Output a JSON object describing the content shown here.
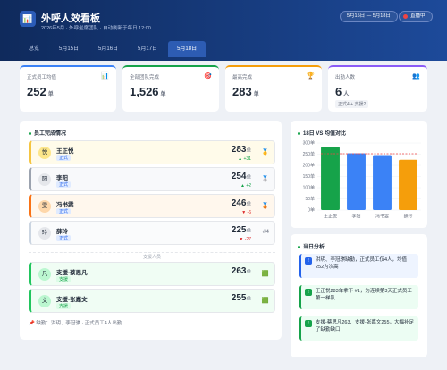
{
  "header": {
    "title": "外呼人效看板",
    "subtitle": "2026年5月 · 外呼坐席团队 · 自动刷新于每日 12:00",
    "date_range": "5月15日 — 5月18日",
    "live": "直播中"
  },
  "tabs": [
    "总览",
    "5月15日",
    "5月16日",
    "5月17日",
    "5月18日"
  ],
  "kpis": [
    {
      "label": "正式员工均值",
      "value": "252",
      "unit": "单",
      "icon": "📊"
    },
    {
      "label": "全部团队完成",
      "value": "1,526",
      "unit": "单",
      "icon": "🎯"
    },
    {
      "label": "最高完成",
      "value": "283",
      "unit": "单",
      "icon": "🏆"
    },
    {
      "label": "出勤人数",
      "value": "6",
      "unit": "人",
      "icon": "👥",
      "note": "正式4 + 支援2"
    }
  ],
  "staff": {
    "title": "员工完成情况",
    "formal": [
      {
        "avatar": "悦",
        "name": "王正悦",
        "tag": "正式",
        "value": "283",
        "unit": "单",
        "delta": "▲ +31",
        "rank": "🥇"
      },
      {
        "avatar": "阳",
        "name": "李阳",
        "tag": "正式",
        "value": "254",
        "unit": "单",
        "delta": "▲ +2",
        "rank": "🥈"
      },
      {
        "avatar": "雯",
        "name": "冯书雯",
        "tag": "正式",
        "value": "246",
        "unit": "单",
        "delta": "▼ -6",
        "rank": "🥉"
      },
      {
        "avatar": "玲",
        "name": "薛玲",
        "tag": "正式",
        "value": "225",
        "unit": "单",
        "delta": "▼ -27",
        "rank": "#4"
      }
    ],
    "support_label": "支援人员",
    "support": [
      {
        "avatar": "凡",
        "name": "支援-蔡思凡",
        "tag": "支援",
        "value": "263",
        "unit": "单",
        "rank": "🟩"
      },
      {
        "avatar": "文",
        "name": "支援-张嘉文",
        "tag": "支援",
        "value": "255",
        "unit": "单",
        "rank": "🟩"
      }
    ],
    "footer": "📌 缺勤：洪玥、李冠骐 · 正式员工4人出勤"
  },
  "chart_data": {
    "type": "bar",
    "title": "18日 VS 均值对比",
    "categories": [
      "王正悦",
      "李阳",
      "冯书雯",
      "薛玲"
    ],
    "values": [
      283,
      254,
      246,
      225
    ],
    "colors": [
      "#16a34a",
      "#3b82f6",
      "#3b82f6",
      "#f59e0b"
    ],
    "mean": 252,
    "mean_color": "#ef4444",
    "ylim": [
      0,
      300
    ],
    "yticks": [
      {
        "value": 0,
        "label": "0单"
      },
      {
        "value": 50,
        "label": "50单"
      },
      {
        "value": 100,
        "label": "100单"
      },
      {
        "value": 150,
        "label": "150单"
      },
      {
        "value": 200,
        "label": "200单"
      },
      {
        "value": 250,
        "label": "250单"
      },
      {
        "value": 300,
        "label": "300单"
      }
    ],
    "grid": true
  },
  "analysis": {
    "title": "当日分析",
    "items": [
      {
        "icon": "!",
        "text": "洪玥、李冠骐缺勤，正式员工仅4人，均值252为次高"
      },
      {
        "icon": "!",
        "text": "王正悦283单拿下 #1，为连续第3天正式员工第一梯队"
      },
      {
        "icon": "!",
        "text": "支援-蔡思凡263、支援-张嘉文255，大幅补足了缺勤缺口"
      }
    ]
  }
}
